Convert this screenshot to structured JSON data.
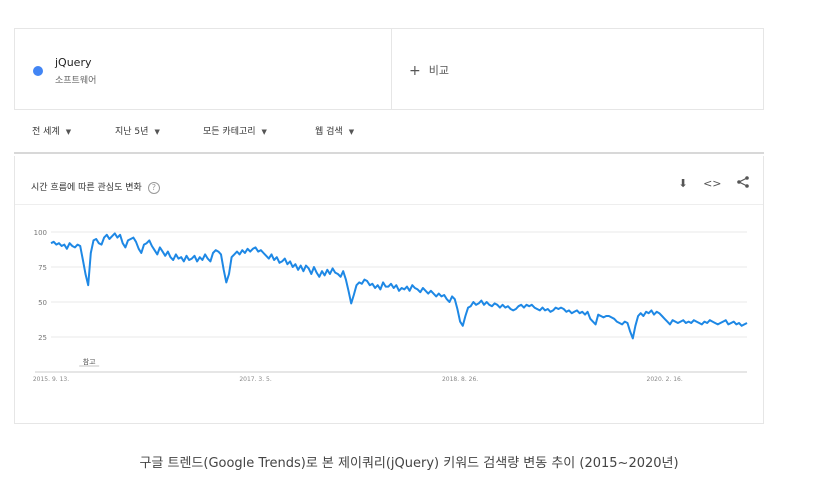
{
  "term": {
    "name": "jQuery",
    "type": "소프트웨어",
    "color": "#4285f4"
  },
  "compare": {
    "plus": "+",
    "label": "비교"
  },
  "filters": [
    {
      "label": "전 세계"
    },
    {
      "label": "지난 5년"
    },
    {
      "label": "모든 카테고리"
    },
    {
      "label": "웹 검색"
    }
  ],
  "panel": {
    "title": "시간 흐름에 따른 관심도 변화",
    "help": "?",
    "download_icon": "⬇",
    "embed_icon": "<>",
    "share_icon": "share-icon"
  },
  "caption": "구글 트렌드(Google Trends)로 본 제이쿼리(jQuery) 키워드 검색량 변동 추이 (2015~2020년)",
  "chart_data": {
    "type": "line",
    "ylim": [
      0,
      100
    ],
    "yticks": [
      100,
      75,
      50,
      25
    ],
    "xtick_labels": [
      "2015. 9. 13.",
      "2017. 3. 5.",
      "2018. 8. 26.",
      "2020. 2. 16."
    ],
    "xtick_index": [
      0,
      77,
      154,
      231
    ],
    "annotation": {
      "text": "참고",
      "index": 14
    },
    "series": [
      {
        "color": "#1e88e5",
        "values": [
          92,
          93,
          91,
          92,
          90,
          91,
          88,
          92,
          90,
          89,
          91,
          90,
          80,
          70,
          62,
          85,
          94,
          95,
          92,
          91,
          96,
          98,
          95,
          97,
          99,
          96,
          98,
          92,
          89,
          94,
          95,
          96,
          93,
          88,
          85,
          91,
          92,
          94,
          90,
          87,
          84,
          89,
          86,
          83,
          86,
          82,
          80,
          84,
          81,
          82,
          79,
          83,
          80,
          81,
          83,
          79,
          82,
          80,
          84,
          81,
          79,
          85,
          87,
          86,
          84,
          73,
          64,
          70,
          82,
          84,
          86,
          84,
          87,
          85,
          88,
          86,
          88,
          89,
          86,
          87,
          85,
          83,
          81,
          84,
          80,
          82,
          78,
          79,
          81,
          77,
          79,
          75,
          77,
          73,
          76,
          72,
          76,
          74,
          70,
          75,
          71,
          68,
          72,
          69,
          73,
          70,
          74,
          71,
          70,
          68,
          72,
          66,
          58,
          49,
          55,
          62,
          64,
          63,
          66,
          65,
          62,
          63,
          60,
          62,
          59,
          64,
          61,
          61,
          63,
          60,
          62,
          58,
          60,
          59,
          61,
          58,
          62,
          60,
          59,
          57,
          60,
          58,
          56,
          58,
          56,
          54,
          56,
          54,
          55,
          52,
          50,
          54,
          52,
          45,
          36,
          33,
          40,
          46,
          47,
          50,
          48,
          49,
          51,
          48,
          50,
          48,
          47,
          49,
          48,
          46,
          48,
          46,
          47,
          45,
          44,
          45,
          47,
          48,
          46,
          48,
          47,
          48,
          46,
          45,
          44,
          46,
          44,
          45,
          43,
          44,
          46,
          45,
          46,
          45,
          43,
          44,
          42,
          43,
          44,
          42,
          43,
          41,
          43,
          38,
          36,
          34,
          41,
          40,
          39,
          40,
          40,
          39,
          38,
          36,
          35,
          34,
          36,
          35,
          29,
          24,
          33,
          40,
          42,
          40,
          43,
          42,
          44,
          41,
          43,
          42,
          40,
          38,
          36,
          34,
          37,
          36,
          35,
          36,
          37,
          35,
          36,
          35,
          37,
          36,
          35,
          34,
          36,
          35,
          37,
          36,
          35,
          34,
          35,
          36,
          37,
          34,
          35,
          36,
          34,
          35,
          33,
          34,
          35
        ]
      }
    ]
  }
}
